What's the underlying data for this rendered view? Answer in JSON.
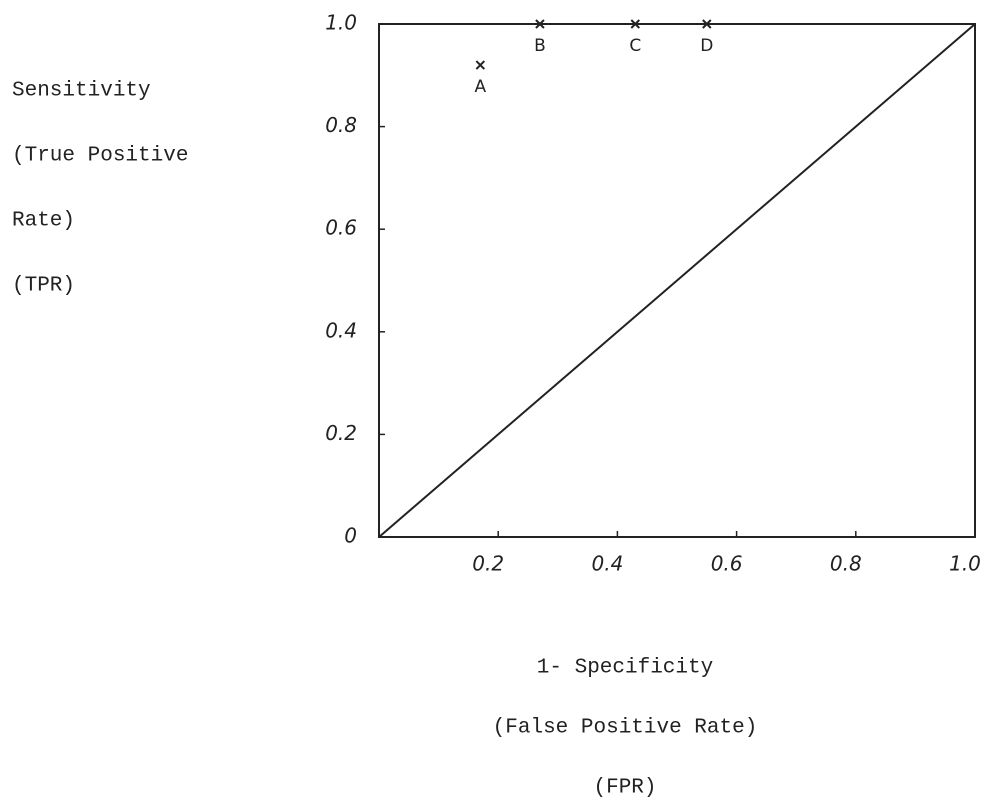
{
  "chart_data": {
    "type": "scatter",
    "y_label": [
      "Sensitivity",
      "(True Positive",
      "Rate)",
      "(TPR)"
    ],
    "x_label": [
      "1- Specificity",
      "(False Positive Rate)",
      "(FPR)"
    ],
    "series": [
      {
        "x": [
          0.17,
          0.27,
          0.43,
          0.55
        ],
        "values": [
          0.92,
          1.0,
          1.0,
          1.0
        ],
        "labels": [
          "A",
          "B",
          "C",
          "D"
        ],
        "color": "#222222"
      }
    ],
    "reference_line": {
      "x": [
        0,
        1
      ],
      "values": [
        0,
        1
      ],
      "color": "#222222"
    },
    "xlim": [
      0,
      1
    ],
    "ylim": [
      0,
      1
    ],
    "xticks": [
      0.2,
      0.4,
      0.6,
      0.8,
      {
        "value": 1,
        "label": "1.0"
      }
    ],
    "yticks": [
      0,
      0.2,
      0.4,
      0.6,
      0.8,
      {
        "value": 1,
        "label": "1.0"
      }
    ]
  }
}
